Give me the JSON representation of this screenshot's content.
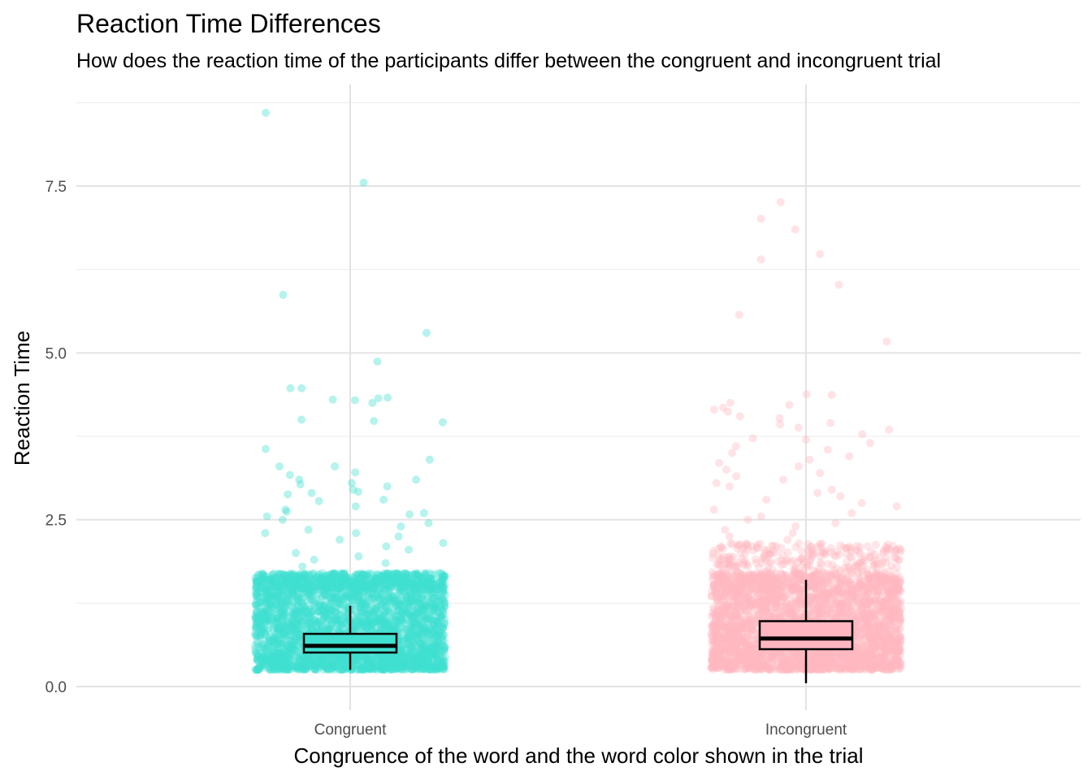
{
  "chart_data": {
    "type": "boxplot",
    "title": "Reaction Time Differences",
    "subtitle": "How does the reaction time of the participants differ between the congruent and incongruent trial",
    "xlabel": "Congruence of the word and the word color shown in the trial",
    "ylabel": "Reaction Time",
    "ylim": [
      -0.3,
      8.9
    ],
    "y_ticks": [
      {
        "value": 0,
        "label": "0.0"
      },
      {
        "value": 2.5,
        "label": "2.5"
      },
      {
        "value": 5,
        "label": "5.0"
      },
      {
        "value": 7.5,
        "label": "7.5"
      }
    ],
    "grid": true,
    "legend": "none",
    "categories": [
      "Congruent",
      "Incongruent"
    ],
    "series": [
      {
        "color": "#40E0D0",
        "box": {
          "whisker_low": 0.25,
          "q1": 0.51,
          "median": 0.61,
          "q3": 0.79,
          "whisker_high": 1.21
        },
        "dense_range": [
          0.25,
          1.7
        ],
        "outliers": [
          8.6,
          7.55,
          5.87,
          5.3,
          4.87,
          4.47,
          4.47,
          4.33,
          4.32,
          4.3,
          4.29,
          4.25,
          4.0,
          3.98,
          3.96,
          3.56,
          3.4,
          3.3,
          3.3,
          3.21,
          3.17,
          3.1,
          3.1,
          3.05,
          3.03,
          3.0,
          2.95,
          2.92,
          2.9,
          2.88,
          2.8,
          2.78,
          2.7,
          2.65,
          2.62,
          2.6,
          2.58,
          2.55,
          2.5,
          2.45,
          2.4,
          2.35,
          2.3,
          2.3,
          2.25,
          2.2,
          2.15,
          2.1,
          2.05,
          2.0,
          1.95,
          1.9,
          1.85,
          1.8
        ]
      },
      {
        "color": "#FFB6C1",
        "box": {
          "whisker_low": 0.05,
          "q1": 0.56,
          "median": 0.72,
          "q3": 0.98,
          "whisker_high": 1.6
        },
        "dense_range": [
          0.25,
          2.15
        ],
        "outliers": [
          7.26,
          7.01,
          6.85,
          6.48,
          6.4,
          6.02,
          5.57,
          5.17,
          4.38,
          4.37,
          4.25,
          4.22,
          4.18,
          4.15,
          4.12,
          4.05,
          4.02,
          3.95,
          3.93,
          3.88,
          3.85,
          3.78,
          3.72,
          3.7,
          3.65,
          3.6,
          3.55,
          3.5,
          3.45,
          3.4,
          3.35,
          3.3,
          3.25,
          3.2,
          3.15,
          3.1,
          3.05,
          3.0,
          2.95,
          2.9,
          2.85,
          2.8,
          2.75,
          2.7,
          2.65,
          2.6,
          2.55,
          2.5,
          2.45,
          2.4,
          2.35,
          2.3,
          2.25,
          2.2
        ]
      }
    ]
  }
}
